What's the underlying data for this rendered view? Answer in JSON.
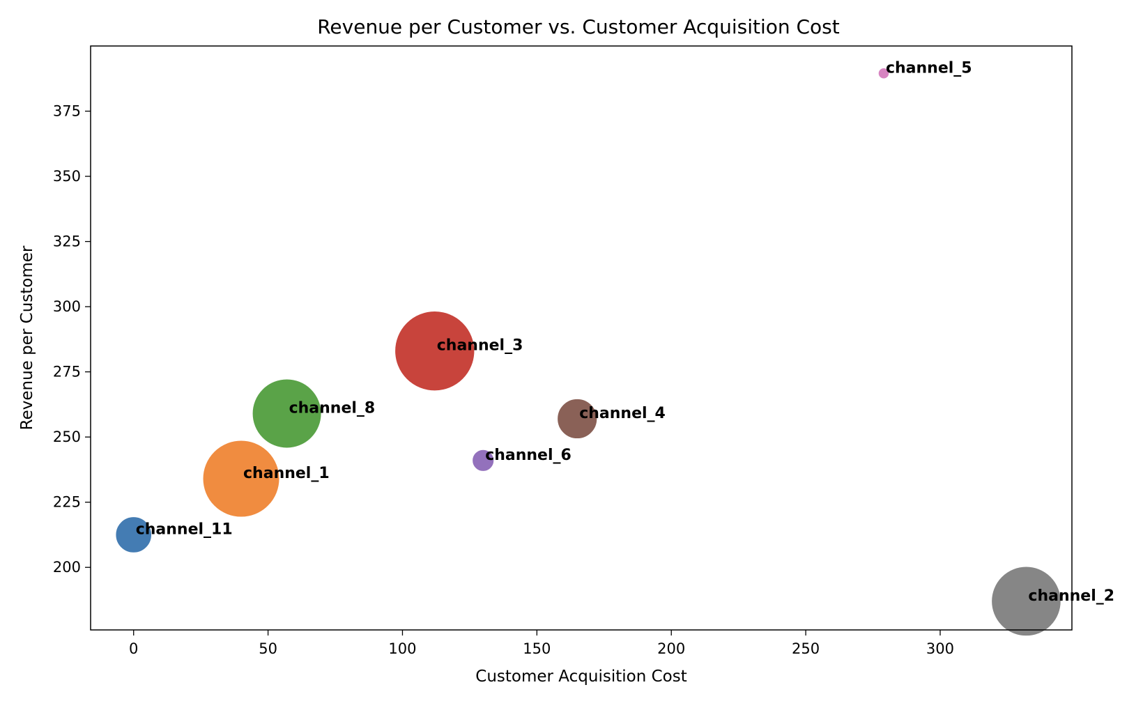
{
  "chart_data": {
    "type": "scatter",
    "title": "Revenue per Customer vs. Customer Acquisition Cost",
    "xlabel": "Customer Acquisition Cost",
    "ylabel": "Revenue per Customer",
    "xlim": [
      -16,
      349
    ],
    "ylim": [
      176,
      400
    ],
    "xticks": [
      0,
      50,
      100,
      150,
      200,
      250,
      300
    ],
    "yticks": [
      200,
      225,
      250,
      275,
      300,
      325,
      350,
      375
    ],
    "grid": false,
    "legend": "none",
    "points": [
      {
        "label": "channel_11",
        "x": 0,
        "y": 212.5,
        "size": 0.22,
        "color": "#3a75af"
      },
      {
        "label": "channel_1",
        "x": 40,
        "y": 234,
        "size": 1.0,
        "color": "#ef8636"
      },
      {
        "label": "channel_8",
        "x": 57,
        "y": 259,
        "size": 0.81,
        "color": "#519e3e"
      },
      {
        "label": "channel_3",
        "x": 112,
        "y": 283,
        "size": 1.08,
        "color": "#c53a32"
      },
      {
        "label": "channel_6",
        "x": 130,
        "y": 241,
        "size": 0.08,
        "color": "#8d69b8"
      },
      {
        "label": "channel_4",
        "x": 165,
        "y": 257,
        "size": 0.27,
        "color": "#84584e"
      },
      {
        "label": "channel_5",
        "x": 279,
        "y": 389.5,
        "size": 0.02,
        "color": "#d57dbe"
      },
      {
        "label": "channel_2",
        "x": 332,
        "y": 187,
        "size": 0.82,
        "color": "#7f7f7f"
      }
    ]
  }
}
